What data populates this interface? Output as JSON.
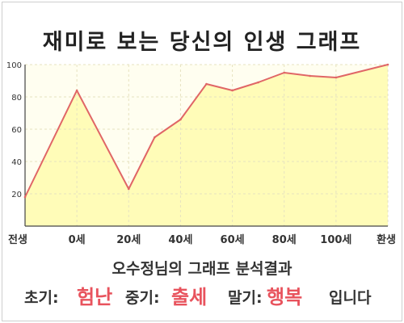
{
  "title": "재미로 보는 당신의 인생 그래프",
  "summary": "오수정님의 그래프 분석결과",
  "results": {
    "early_label": "초기:",
    "early_value": "험난",
    "mid_label": "중기:",
    "mid_value": "출세",
    "late_label": "말기:",
    "late_value": "행복",
    "ending": "입니다"
  },
  "colors": {
    "line": "#e06666",
    "fill": "#fffcb8",
    "accent": "#e8535d"
  },
  "chart_data": {
    "type": "area",
    "x_tick_labels": [
      "전생",
      "0세",
      "20세",
      "40세",
      "60세",
      "80세",
      "100세",
      "환생"
    ],
    "y_ticks": [
      20,
      40,
      60,
      80,
      100
    ],
    "ylim": [
      0,
      100
    ],
    "grid": true,
    "series": [
      {
        "x": [
          0,
          1,
          2,
          2.5,
          3,
          3.5,
          4,
          4.5,
          5,
          5.5,
          6,
          7
        ],
        "y": [
          18,
          84,
          23,
          55,
          66,
          88,
          84,
          89,
          95,
          93,
          92,
          100
        ]
      }
    ]
  }
}
